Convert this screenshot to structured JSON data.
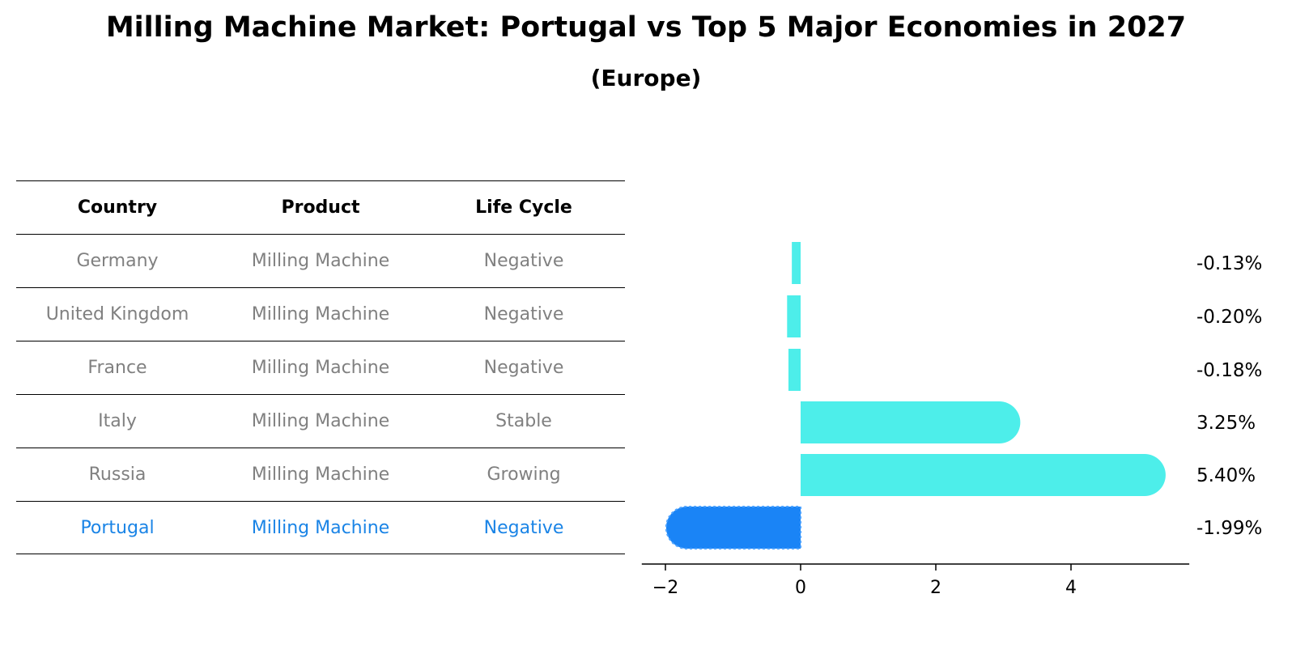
{
  "header": {
    "title": "Milling Machine Market: Portugal vs Top 5 Major Economies in 2027",
    "subtitle": "(Europe)"
  },
  "table": {
    "columns": [
      "Country",
      "Product",
      "Life Cycle"
    ],
    "rows": [
      {
        "country": "Germany",
        "product": "Milling Machine",
        "life_cycle": "Negative"
      },
      {
        "country": "United Kingdom",
        "product": "Milling Machine",
        "life_cycle": "Negative"
      },
      {
        "country": "France",
        "product": "Milling Machine",
        "life_cycle": "Negative"
      },
      {
        "country": "Italy",
        "product": "Milling Machine",
        "life_cycle": "Stable"
      },
      {
        "country": "Russia",
        "product": "Milling Machine",
        "life_cycle": "Growing"
      },
      {
        "country": "Portugal",
        "product": "Milling Machine",
        "life_cycle": "Negative"
      }
    ],
    "highlight_color": "#1a84e6",
    "text_color": "#808080"
  },
  "chart_data": {
    "type": "bar",
    "orientation": "horizontal",
    "categories": [
      "Germany",
      "United Kingdom",
      "France",
      "Italy",
      "Russia",
      "Portugal"
    ],
    "values": [
      -0.13,
      -0.2,
      -0.18,
      3.25,
      5.4,
      -1.99
    ],
    "value_labels": [
      "-0.13%",
      "-0.20%",
      "-0.18%",
      "3.25%",
      "5.40%",
      "-1.99%"
    ],
    "xticks": [
      -2,
      0,
      2,
      4
    ],
    "xlim": [
      -2.35,
      5.75
    ],
    "grid": false,
    "colors": {
      "default": "#4deeea",
      "highlight": "#1a84f6"
    },
    "highlight_index": 5
  }
}
